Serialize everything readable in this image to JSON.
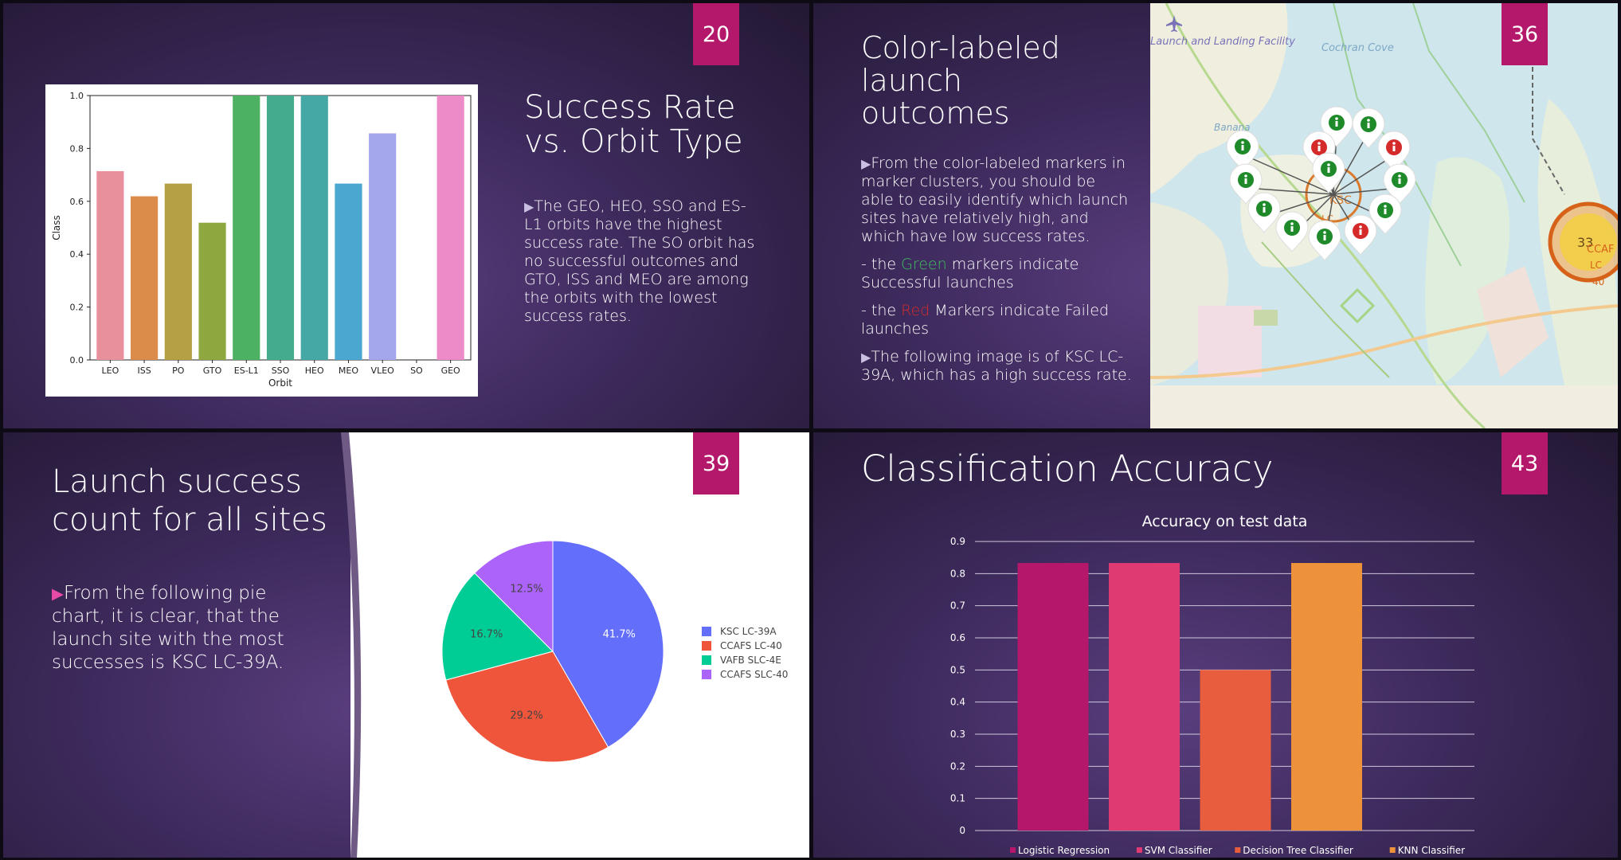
{
  "slides": [
    {
      "number": "20",
      "title": "Success Rate vs. Orbit Type",
      "bullet": "The GEO, HEO, SSO and ES-L1 orbits have the highest success rate. The SO orbit has no successful outcomes and GTO, ISS and MEO are among the orbits with the lowest success rates."
    },
    {
      "number": "36",
      "title_lines": [
        "Color-labeled",
        "launch",
        "outcomes"
      ],
      "p1": "From the color-labeled markers in marker clusters, you should be able to easily identify which launch sites have relatively high, and which have low success rates.",
      "p2_pre": "- the ",
      "p2_word": "Green",
      "p2_post": " markers indicate Successful  launches",
      "p3_pre": "- the ",
      "p3_word": "Red",
      "p3_post": " Markers indicate Failed launches",
      "p4": "The following image is of KSC LC-39A, which has a high success rate.",
      "map_labels": {
        "facility": "Launch and Landing Facility",
        "cove": "Cochran Cove",
        "banana": "Banana",
        "ksc": "KSC",
        "lc": "LC",
        "cluster_count": "33",
        "ccaf": "CCAF",
        "lc2": "LC",
        "num40": "40"
      }
    },
    {
      "number": "39",
      "title_lines": [
        "Launch success",
        "count for all sites"
      ],
      "bullet": "From the following pie chart, it is clear, that the launch site with the most successes is KSC LC-39A."
    },
    {
      "number": "43",
      "title": "Classification Accuracy"
    }
  ],
  "chart_data": [
    {
      "type": "bar",
      "categories": [
        "LEO",
        "ISS",
        "PO",
        "GTO",
        "ES-L1",
        "SSO",
        "HEO",
        "MEO",
        "VLEO",
        "SO",
        "GEO"
      ],
      "values": [
        0.714,
        0.619,
        0.667,
        0.519,
        1.0,
        1.0,
        1.0,
        0.667,
        0.857,
        0.0,
        1.0
      ],
      "colors": [
        "#e8919c",
        "#dc8c4a",
        "#b5a043",
        "#8ea73e",
        "#4cb163",
        "#45ab8e",
        "#46a8a5",
        "#4aa7cf",
        "#a5a7ec",
        "#d887d6",
        "#ed8ac8"
      ],
      "xlabel": "Orbit",
      "ylabel": "Class",
      "ylim": [
        0,
        1.0
      ],
      "yticks": [
        "0.0",
        "0.2",
        "0.4",
        "0.6",
        "0.8",
        "1.0"
      ]
    },
    {
      "type": "pie",
      "labels": [
        "KSC LC-39A",
        "CCAFS LC-40",
        "VAFB SLC-4E",
        "CCAFS SLC-40"
      ],
      "values": [
        41.7,
        29.2,
        16.7,
        12.5
      ],
      "value_labels": [
        "41.7%",
        "29.2%",
        "16.7%",
        "12.5%"
      ],
      "colors": [
        "#636efa",
        "#ef553b",
        "#00cc96",
        "#ab63fa"
      ],
      "legend": "right"
    },
    {
      "type": "bar",
      "title": "Accuracy on test data",
      "categories": [
        "Logistic Regression",
        "SVM Classifier",
        "Decision Tree Classifier",
        "KNN Classifier"
      ],
      "values": [
        0.833,
        0.833,
        0.5,
        0.833
      ],
      "colors": [
        "#b5186a",
        "#e03a73",
        "#e85d3e",
        "#ed923a"
      ],
      "ylim": [
        0,
        0.9
      ],
      "yticks": [
        "0",
        "0.1",
        "0.2",
        "0.3",
        "0.4",
        "0.5",
        "0.6",
        "0.7",
        "0.8",
        "0.9"
      ],
      "legend": "bottom",
      "grid": true
    }
  ]
}
